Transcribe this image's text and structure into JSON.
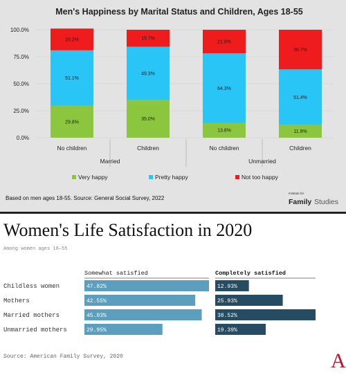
{
  "chart_data": [
    {
      "type": "bar",
      "stacked": true,
      "title": "Men's Happiness by Marital Status and Children, Ages 18-55",
      "categories": [
        "No children",
        "Children",
        "No children",
        "Children"
      ],
      "groups": [
        {
          "label": "Married",
          "categories": [
            0,
            1
          ]
        },
        {
          "label": "Unmarried",
          "categories": [
            2,
            3
          ]
        }
      ],
      "series": [
        {
          "name": "Very happy",
          "color": "#8cc63f",
          "values": [
            29.8,
            35.0,
            13.8,
            11.9
          ],
          "labels": [
            "29.8%",
            "35.0%",
            "13.8%",
            "11.9%"
          ]
        },
        {
          "name": "Pretty happy",
          "color": "#29c5f6",
          "values": [
            51.1,
            49.3,
            64.3,
            51.4
          ],
          "labels": [
            "51.1%",
            "49.3%",
            "64.3%",
            "51.4%"
          ]
        },
        {
          "name": "Not too happy",
          "color": "#ee1c1c",
          "values": [
            20.2,
            15.7,
            21.9,
            36.7
          ],
          "labels": [
            "20.2%",
            "15.7%",
            "21.9%",
            "36.7%"
          ]
        }
      ],
      "yticks": [
        "100.0%",
        "75.0%",
        "50.0%",
        "25.0%",
        "0.0%"
      ],
      "ylim": [
        0,
        100
      ],
      "legend_position": "bottom",
      "note": "Based on men ages 18-55. Source: General Social Survey, 2022",
      "logo": {
        "small": "Institute for",
        "main": "Family",
        "rest": "Studies"
      }
    },
    {
      "type": "bar",
      "orientation": "horizontal",
      "title": "Women's Life Satisfaction in 2020",
      "subtitle": "Among women ages 18–55",
      "categories": [
        "Childless women",
        "Mothers",
        "Married mothers",
        "Unmarried mothers"
      ],
      "series": [
        {
          "name": "Somewhat satisfied",
          "color": "#5b9ebd",
          "values": [
            47.82,
            42.55,
            45.03,
            29.95
          ],
          "labels": [
            "47.82%",
            "42.55%",
            "45.03%",
            "29.95%"
          ]
        },
        {
          "name": "Completely satisfied",
          "color": "#264c63",
          "values": [
            12.93,
            25.93,
            38.52,
            19.39
          ],
          "labels": [
            "12.93%",
            "25.93%",
            "38.52%",
            "19.39%"
          ]
        }
      ],
      "source": "Source: American Family Survey, 2020",
      "logo": "A"
    }
  ]
}
